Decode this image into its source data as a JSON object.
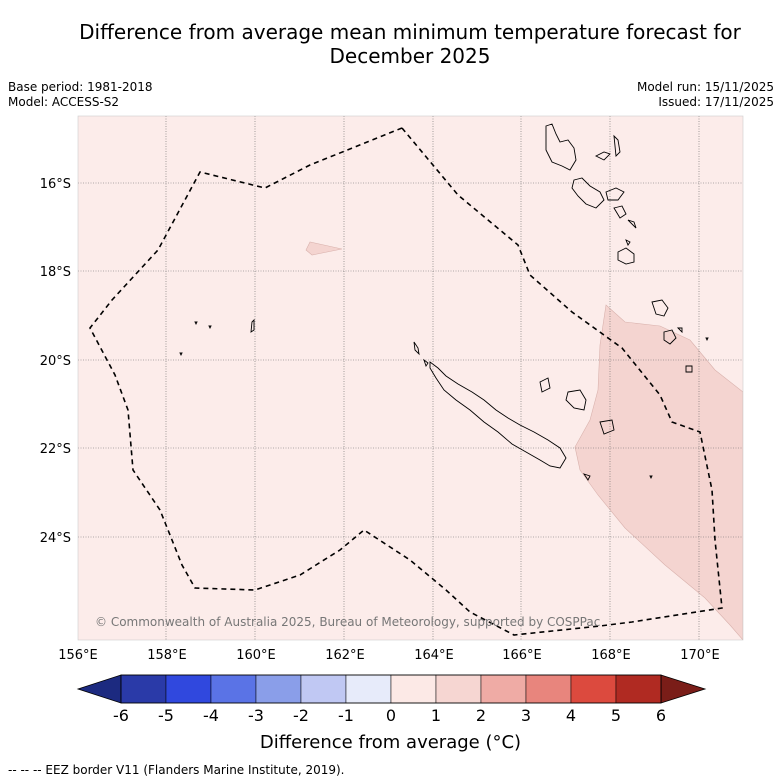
{
  "title_line1": "Difference from average mean minimum temperature forecast for",
  "title_line2": "December 2025",
  "base_period": "Base period: 1981-2018",
  "model": "Model: ACCESS-S2",
  "model_run": "Model run: 15/11/2025",
  "issued": "Issued: 17/11/2025",
  "copyright": "© Commonwealth of Australia 2025, Bureau of Meteorology, supported by COSPPac",
  "lat_labels": [
    "16°S",
    "18°S",
    "20°S",
    "22°S",
    "24°S"
  ],
  "lon_labels": [
    "156°E",
    "158°E",
    "160°E",
    "162°E",
    "164°E",
    "166°E",
    "168°E",
    "170°E"
  ],
  "colorbar": {
    "ticks": [
      "-6",
      "-5",
      "-4",
      "-3",
      "-2",
      "-1",
      "0",
      "1",
      "2",
      "3",
      "4",
      "5",
      "6"
    ],
    "colors": [
      "#2a3aa8",
      "#3048de",
      "#5a73e6",
      "#8a9ee9",
      "#c0c8f3",
      "#e7ebfa",
      "#fce9e6",
      "#f6d6d2",
      "#efaba5",
      "#e8857d",
      "#dc4a3e",
      "#b02a22"
    ],
    "under_color": "#1c2a80",
    "over_color": "#7a1d18",
    "title": "Difference from average (°C)"
  },
  "colors": {
    "background_anomaly": "#fcecea",
    "warm_anomaly": "#f4d4d0"
  },
  "footnote": "--  --  -- EEZ border V11 (Flanders Marine Institute, 2019)."
}
